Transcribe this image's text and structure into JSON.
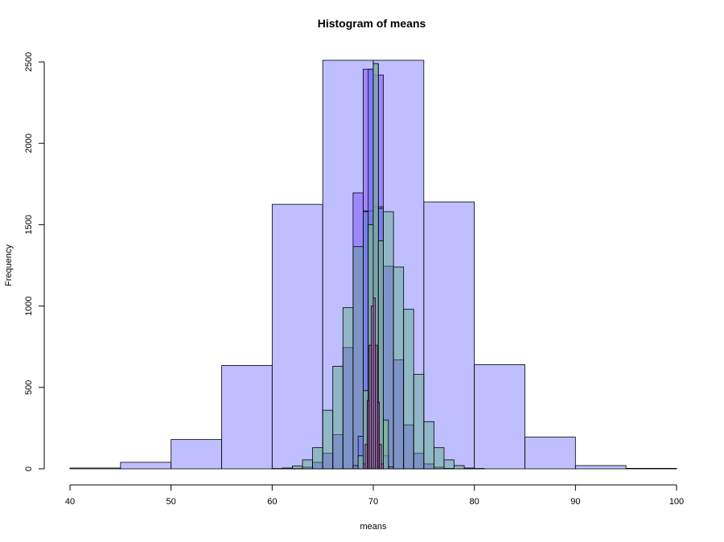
{
  "chart_data": {
    "type": "bar",
    "title": "Histogram of means",
    "xlabel": "means",
    "ylabel": "Frequency",
    "xlim": [
      40,
      100
    ],
    "ylim": [
      0,
      2500
    ],
    "x_ticks": [
      40,
      50,
      60,
      70,
      80,
      90,
      100
    ],
    "y_ticks": [
      0,
      500,
      1000,
      1500,
      2000,
      2500
    ],
    "grid": false,
    "series": [
      {
        "fill": "#8080ff",
        "opacity": 0.5,
        "breaks": [
          40,
          45,
          50,
          55,
          60,
          65,
          70,
          75,
          80,
          85,
          90,
          95,
          100
        ],
        "counts": [
          5,
          40,
          180,
          635,
          1625,
          2510,
          2510,
          1640,
          640,
          195,
          20,
          3
        ]
      },
      {
        "fill": "#7d4dff",
        "opacity": 0.5,
        "breaks": [
          62,
          63,
          64,
          65,
          66,
          67,
          68,
          69,
          70,
          71,
          72,
          73,
          74,
          75,
          76,
          77,
          78
        ],
        "counts": [
          2,
          10,
          40,
          95,
          210,
          745,
          1695,
          2455,
          2420,
          1245,
          670,
          270,
          95,
          30,
          10,
          3
        ]
      },
      {
        "fill": "#4daa70",
        "opacity": 0.4,
        "breaks": [
          60,
          61,
          62,
          63,
          64,
          65,
          66,
          67,
          68,
          69,
          70,
          71,
          72,
          73,
          74,
          75,
          76,
          77,
          78,
          79,
          80,
          81
        ],
        "counts": [
          2,
          5,
          18,
          55,
          130,
          360,
          630,
          990,
          1365,
          1585,
          1610,
          1580,
          1240,
          980,
          580,
          290,
          130,
          55,
          20,
          5,
          2
        ]
      },
      {
        "fill": "#7070ff",
        "opacity": 0.55,
        "breaks": [
          68.0,
          68.5,
          69.0,
          69.5,
          70.0,
          70.5,
          71.0,
          71.5,
          72.0
        ],
        "counts": [
          20,
          200,
          1580,
          2455,
          2490,
          1600,
          80,
          12
        ]
      },
      {
        "fill": "#80bf8a",
        "opacity": 0.6,
        "breaks": [
          68.5,
          69.0,
          69.5,
          70.0,
          70.5,
          71.0,
          71.5
        ],
        "counts": [
          80,
          480,
          1500,
          2490,
          1400,
          300
        ]
      },
      {
        "fill": "#c050c0",
        "opacity": 0.55,
        "breaks": [
          69.0,
          69.2,
          69.4,
          69.6,
          69.8,
          70.0,
          70.2,
          70.4,
          70.6,
          70.8,
          71.0
        ],
        "counts": [
          30,
          150,
          420,
          760,
          1000,
          1050,
          760,
          410,
          150,
          30
        ]
      }
    ]
  }
}
